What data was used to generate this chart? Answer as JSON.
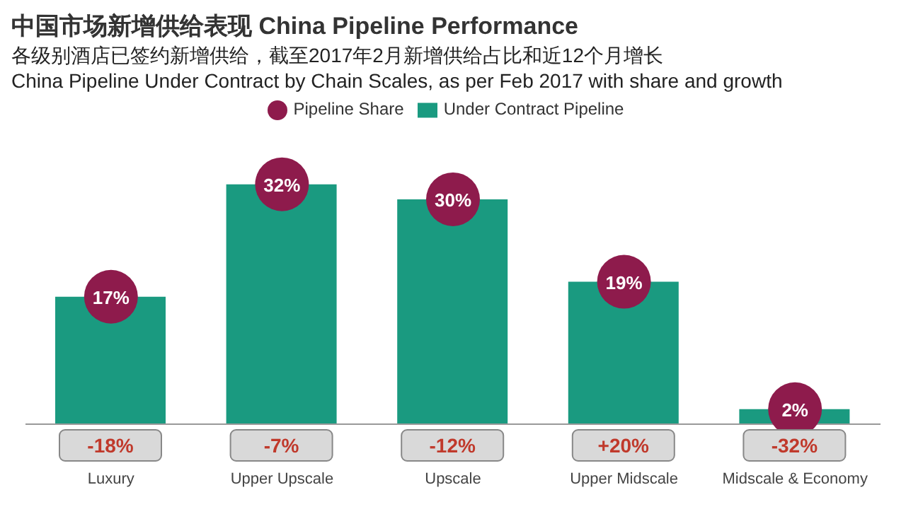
{
  "chart_data": {
    "type": "bar",
    "title": "中国市场新增供给表现 China Pipeline Performance",
    "subtitle": "各级别酒店已签约新增供给，截至2017年2月新增供给占比和近12个月增长\nChina Pipeline Under Contract by Chain Scales, as per Feb 2017 with share and growth",
    "categories": [
      "Luxury",
      "Upper Upscale",
      "Upscale",
      "Upper Midscale",
      "Midscale & Economy"
    ],
    "tick_labels": "x",
    "legend": "top",
    "series": [
      {
        "name": "Under Contract Pipeline",
        "color": "#1a9a80",
        "values": [
          17,
          32,
          30,
          19,
          2
        ],
        "value_labels": [
          "17%",
          "32%",
          "30%",
          "19%",
          "2%"
        ]
      },
      {
        "name": "Pipeline Share",
        "type": "scatter",
        "color": "#8e1b4c",
        "values": [
          17,
          32,
          30,
          19,
          2
        ]
      }
    ],
    "annotations": [
      "-18%",
      "-7%",
      "-12%",
      "+20%",
      "-32%"
    ]
  }
}
